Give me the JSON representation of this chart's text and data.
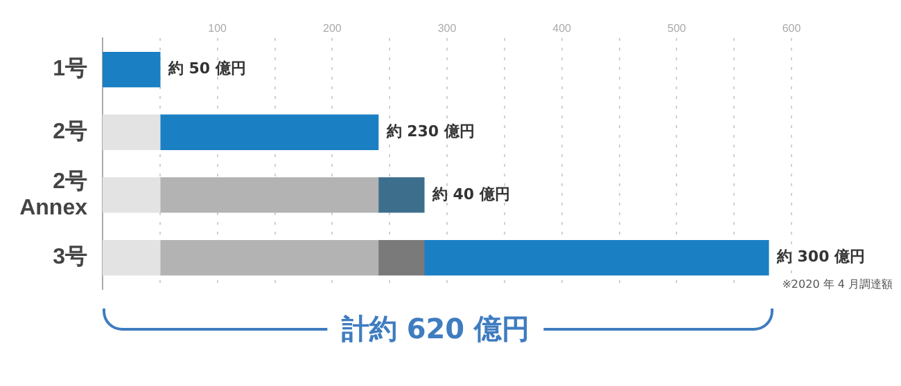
{
  "chart_data": {
    "type": "bar",
    "orientation": "horizontal",
    "stacked": true,
    "categories": [
      "1号",
      "2号",
      "2号 Annex",
      "3号"
    ],
    "series": [
      {
        "color": "#e3e3e3",
        "values": [
          null,
          50,
          50,
          50
        ]
      },
      {
        "color": "#b3b3b3",
        "values": [
          null,
          null,
          190,
          190
        ]
      },
      {
        "color": "#7a7a7a",
        "values": [
          null,
          null,
          null,
          40
        ]
      },
      {
        "color": "#1b7fc4",
        "values": [
          50,
          190,
          null,
          300
        ],
        "value_labels": [
          "約 50 億円",
          "約 230 億円",
          null,
          "約 300 億円"
        ]
      },
      {
        "color": "#3d6f8c",
        "values": [
          null,
          null,
          40,
          null
        ],
        "value_labels": [
          null,
          null,
          "約 40 億円",
          null
        ]
      }
    ],
    "xlim": [
      0,
      600
    ],
    "xticks": [
      {
        "value": 0,
        "label": null
      },
      {
        "value": 50,
        "label": null
      },
      100,
      {
        "value": 150,
        "label": null
      },
      200,
      {
        "value": 250,
        "label": null
      },
      300,
      {
        "value": 350,
        "label": null
      },
      400,
      {
        "value": 450,
        "label": null
      },
      500,
      {
        "value": 550,
        "label": null
      },
      600
    ],
    "grid": "x",
    "legend": false,
    "annotations": [
      "※2020 年 4 月調達額",
      "計約 620 億円"
    ]
  }
}
